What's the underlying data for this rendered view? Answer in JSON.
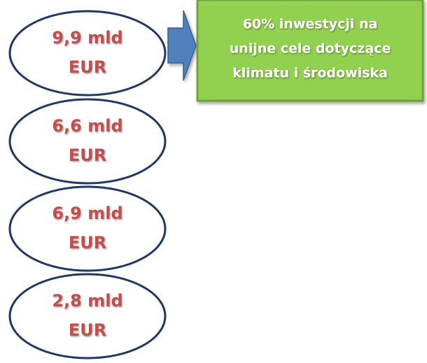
{
  "nodes": [
    {
      "amount": "9,9 mld",
      "unit": "EUR"
    },
    {
      "amount": "6,6 mld",
      "unit": "EUR"
    },
    {
      "amount": "6,9 mld",
      "unit": "EUR"
    },
    {
      "amount": "2,8 mld",
      "unit": "EUR"
    }
  ],
  "callout": {
    "lines": [
      "60% inwestycji na",
      "unijne cele dotyczące",
      "klimatu i środowiska"
    ]
  }
}
